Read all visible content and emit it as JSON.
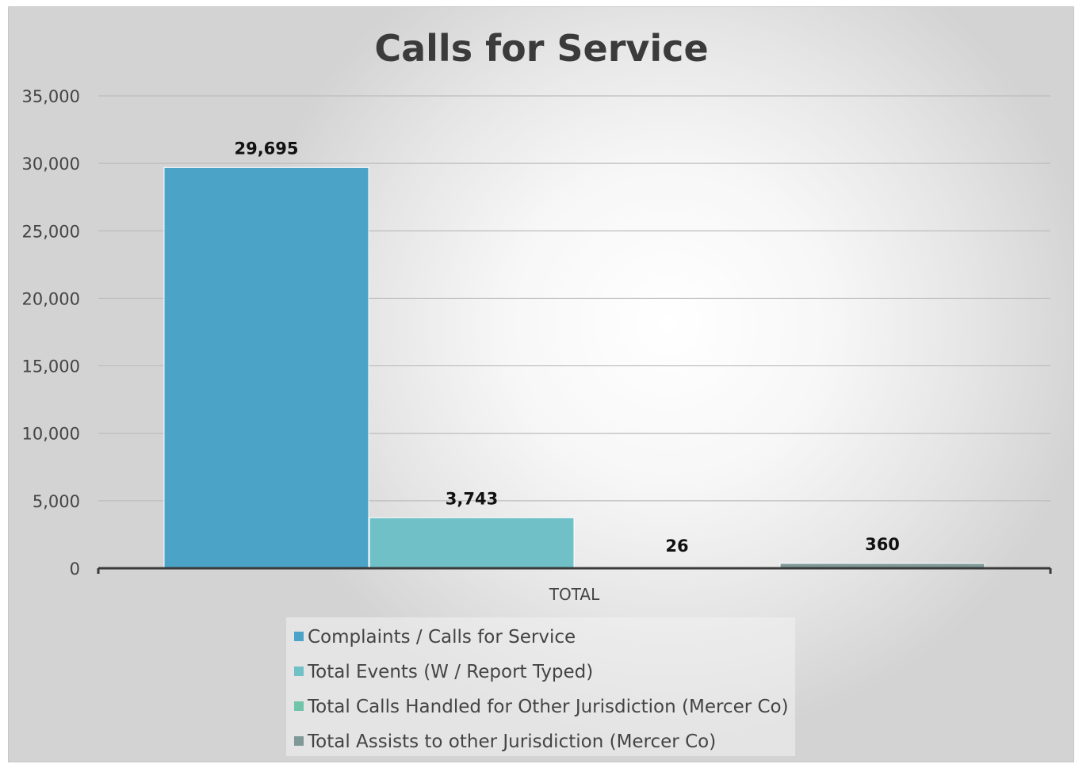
{
  "chart_data": {
    "type": "bar",
    "title": "Calls for Service",
    "categories": [
      "TOTAL"
    ],
    "series": [
      {
        "name": "Complaints / Calls for Service",
        "values": [
          29695
        ],
        "label": "29,695",
        "color": "#4ba3c7"
      },
      {
        "name": "Total Events (W / Report Typed)",
        "values": [
          3743
        ],
        "label": "3,743",
        "color": "#70c0c7"
      },
      {
        "name": "Total Calls Handled for Other Jurisdiction (Mercer Co)",
        "values": [
          26
        ],
        "label": "26",
        "color": "#6fc4a9"
      },
      {
        "name": "Total Assists to other Jurisdiction (Mercer Co)",
        "values": [
          360
        ],
        "label": "360",
        "color": "#7f9998"
      }
    ],
    "ylim": [
      0,
      35000
    ],
    "yticks": [
      0,
      5000,
      10000,
      15000,
      20000,
      25000,
      30000,
      35000
    ],
    "ytick_labels": [
      "0",
      "5,000",
      "10,000",
      "15,000",
      "20,000",
      "25,000",
      "30,000",
      "35,000"
    ],
    "grid": true,
    "legend_position": "bottom"
  }
}
